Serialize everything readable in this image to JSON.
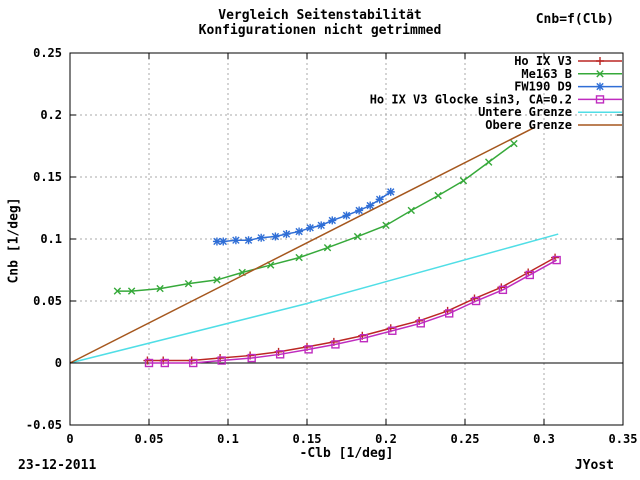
{
  "header": {
    "title_line1": "Vergleich Seitenstabilität",
    "title_line2": "Konfigurationen nicht getrimmed",
    "formula_label": "Cnb=f(Clb)"
  },
  "footer": {
    "date": "23-12-2011",
    "author": "JYost"
  },
  "chart_data": {
    "type": "line",
    "title": "Vergleich Seitenstabilität",
    "subtitle": "Konfigurationen nicht getrimmed",
    "xlabel": "-Clb [1/deg]",
    "ylabel": "Cnb [1/deg]",
    "xlim": [
      0,
      0.35
    ],
    "ylim": [
      -0.05,
      0.25
    ],
    "xticks": [
      0,
      0.05,
      0.1,
      0.15,
      0.2,
      0.25,
      0.3,
      0.35
    ],
    "x_tick_labels": [
      "0",
      "0.05",
      "0.1",
      "0.15",
      "0.2",
      "0.25",
      "0.3",
      "0.35"
    ],
    "yticks": [
      -0.05,
      0,
      0.05,
      0.1,
      0.15,
      0.2,
      0.25
    ],
    "y_tick_labels": [
      "-0.05",
      "0",
      "0.05",
      "0.1",
      "0.15",
      "0.2",
      "0.25"
    ],
    "grid": true,
    "legend_position": "top-right",
    "colors": {
      "grid": "#a9a9a9",
      "axis": "#000000",
      "zero_line": "#000000"
    },
    "series": [
      {
        "name": "Ho IX V3",
        "color": "#bc2724",
        "marker": "plus",
        "points": [
          [
            0.049,
            0.002
          ],
          [
            0.059,
            0.002
          ],
          [
            0.077,
            0.002
          ],
          [
            0.095,
            0.004
          ],
          [
            0.114,
            0.006
          ],
          [
            0.132,
            0.009
          ],
          [
            0.15,
            0.013
          ],
          [
            0.167,
            0.017
          ],
          [
            0.185,
            0.022
          ],
          [
            0.203,
            0.028
          ],
          [
            0.221,
            0.034
          ],
          [
            0.239,
            0.042
          ],
          [
            0.256,
            0.052
          ],
          [
            0.273,
            0.061
          ],
          [
            0.29,
            0.073
          ],
          [
            0.307,
            0.085
          ]
        ]
      },
      {
        "name": "Me163 B",
        "color": "#36a93a",
        "marker": "cross",
        "points": [
          [
            0.03,
            0.058
          ],
          [
            0.039,
            0.058
          ],
          [
            0.057,
            0.06
          ],
          [
            0.075,
            0.064
          ],
          [
            0.093,
            0.067
          ],
          [
            0.109,
            0.073
          ],
          [
            0.127,
            0.079
          ],
          [
            0.145,
            0.085
          ],
          [
            0.163,
            0.093
          ],
          [
            0.182,
            0.102
          ],
          [
            0.2,
            0.111
          ],
          [
            0.216,
            0.123
          ],
          [
            0.233,
            0.135
          ],
          [
            0.249,
            0.147
          ],
          [
            0.265,
            0.162
          ],
          [
            0.281,
            0.177
          ]
        ]
      },
      {
        "name": "FW190 D9",
        "color": "#2f6ed6",
        "marker": "asterisk",
        "points": [
          [
            0.093,
            0.098
          ],
          [
            0.097,
            0.098
          ],
          [
            0.105,
            0.099
          ],
          [
            0.113,
            0.099
          ],
          [
            0.121,
            0.101
          ],
          [
            0.13,
            0.102
          ],
          [
            0.137,
            0.104
          ],
          [
            0.145,
            0.106
          ],
          [
            0.152,
            0.109
          ],
          [
            0.159,
            0.111
          ],
          [
            0.166,
            0.115
          ],
          [
            0.175,
            0.119
          ],
          [
            0.183,
            0.123
          ],
          [
            0.19,
            0.127
          ],
          [
            0.196,
            0.132
          ],
          [
            0.203,
            0.138
          ]
        ]
      },
      {
        "name": "Ho IX V3 Glocke sin3, CA=0.2",
        "color": "#bf2cbf",
        "marker": "square-open",
        "points": [
          [
            0.05,
            0.0
          ],
          [
            0.06,
            0.0
          ],
          [
            0.078,
            0.0
          ],
          [
            0.096,
            0.002
          ],
          [
            0.115,
            0.004
          ],
          [
            0.133,
            0.007
          ],
          [
            0.151,
            0.011
          ],
          [
            0.168,
            0.015
          ],
          [
            0.186,
            0.02
          ],
          [
            0.204,
            0.026
          ],
          [
            0.222,
            0.032
          ],
          [
            0.24,
            0.04
          ],
          [
            0.257,
            0.05
          ],
          [
            0.274,
            0.059
          ],
          [
            0.291,
            0.071
          ],
          [
            0.308,
            0.083
          ]
        ]
      },
      {
        "name": "Untere Grenze",
        "color": "#50dee6",
        "marker": "none",
        "points": [
          [
            0.0,
            0.0
          ],
          [
            0.15,
            0.048
          ],
          [
            0.309,
            0.104
          ]
        ]
      },
      {
        "name": "Obere Grenze",
        "color": "#a5571e",
        "marker": "none",
        "points": [
          [
            0.0,
            0.0
          ],
          [
            0.294,
            0.19
          ]
        ]
      }
    ]
  }
}
